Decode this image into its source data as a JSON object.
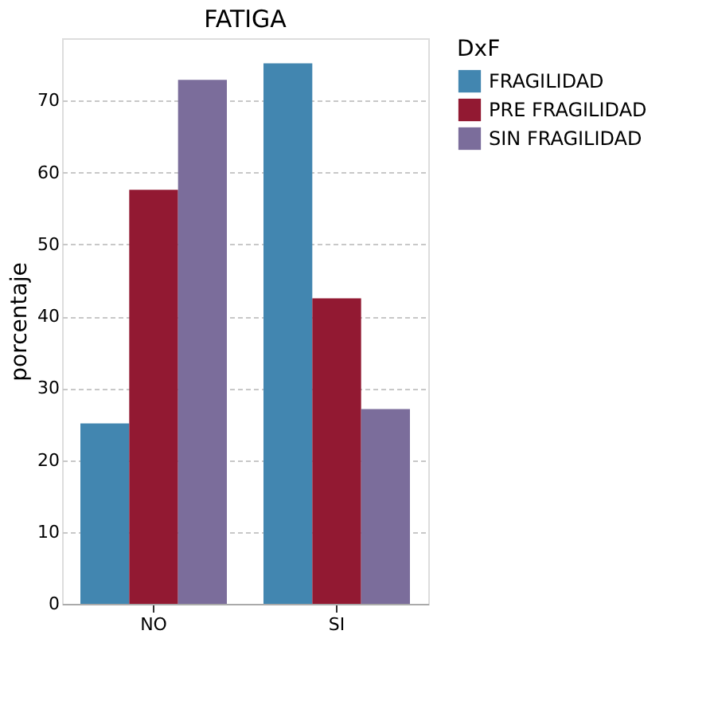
{
  "chart_data": {
    "type": "bar",
    "title": "FATIGA",
    "ylabel": "porcentaje",
    "legend_title": "DxF",
    "categories": [
      "NO",
      "SI"
    ],
    "series": [
      {
        "name": "FRAGILIDAD",
        "color": "#4286b0",
        "values": [
          25.1,
          75.2
        ]
      },
      {
        "name": "PRE FRAGILIDAD",
        "color": "#921932",
        "values": [
          57.6,
          42.5
        ]
      },
      {
        "name": "SIN FRAGILIDAD",
        "color": "#7b6d9b",
        "values": [
          72.9,
          27.1
        ]
      }
    ],
    "ylim": [
      0,
      78.7
    ],
    "yticks": [
      0,
      10,
      20,
      30,
      40,
      50,
      60,
      70
    ],
    "grid": "y",
    "legend": "top right"
  }
}
